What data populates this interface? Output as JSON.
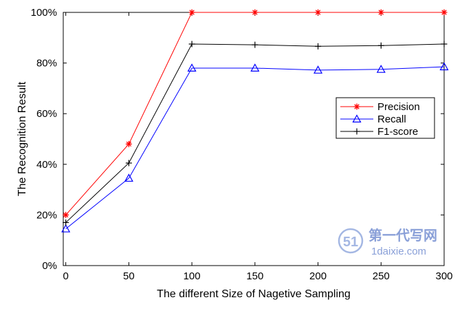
{
  "chart_data": {
    "type": "line",
    "title": "",
    "xlabel": "The different Size of Nagetive Sampling",
    "ylabel": "The Recognition Result",
    "x": [
      0,
      50,
      100,
      150,
      200,
      250,
      300
    ],
    "xlim": [
      -2,
      300
    ],
    "ylim": [
      0,
      100
    ],
    "xticks": [
      0,
      50,
      100,
      150,
      200,
      250,
      300
    ],
    "xtick_labels": [
      "0",
      "50",
      "100",
      "150",
      "200",
      "250",
      "300"
    ],
    "yticks": [
      0,
      20,
      40,
      60,
      80,
      100
    ],
    "ytick_labels": [
      "0%",
      "20%",
      "40%",
      "60%",
      "80%",
      "100%"
    ],
    "grid": false,
    "legend_position": "right",
    "series": [
      {
        "name": "Precision",
        "color": "#ff0000",
        "marker": "asterisk",
        "values": [
          20,
          48,
          100,
          100,
          100,
          100,
          100
        ]
      },
      {
        "name": "Recall",
        "color": "#0000ff",
        "marker": "triangle",
        "values": [
          14.5,
          34.5,
          78,
          78,
          77.2,
          77.5,
          78.5
        ]
      },
      {
        "name": "F1-score",
        "color": "#000000",
        "marker": "plus",
        "values": [
          17,
          40.5,
          87.5,
          87.2,
          86.6,
          86.9,
          87.5
        ]
      }
    ]
  },
  "watermark": {
    "cn_text": "第一代写网",
    "en_text": "1daixie.com",
    "color": "#8aa0d8"
  }
}
